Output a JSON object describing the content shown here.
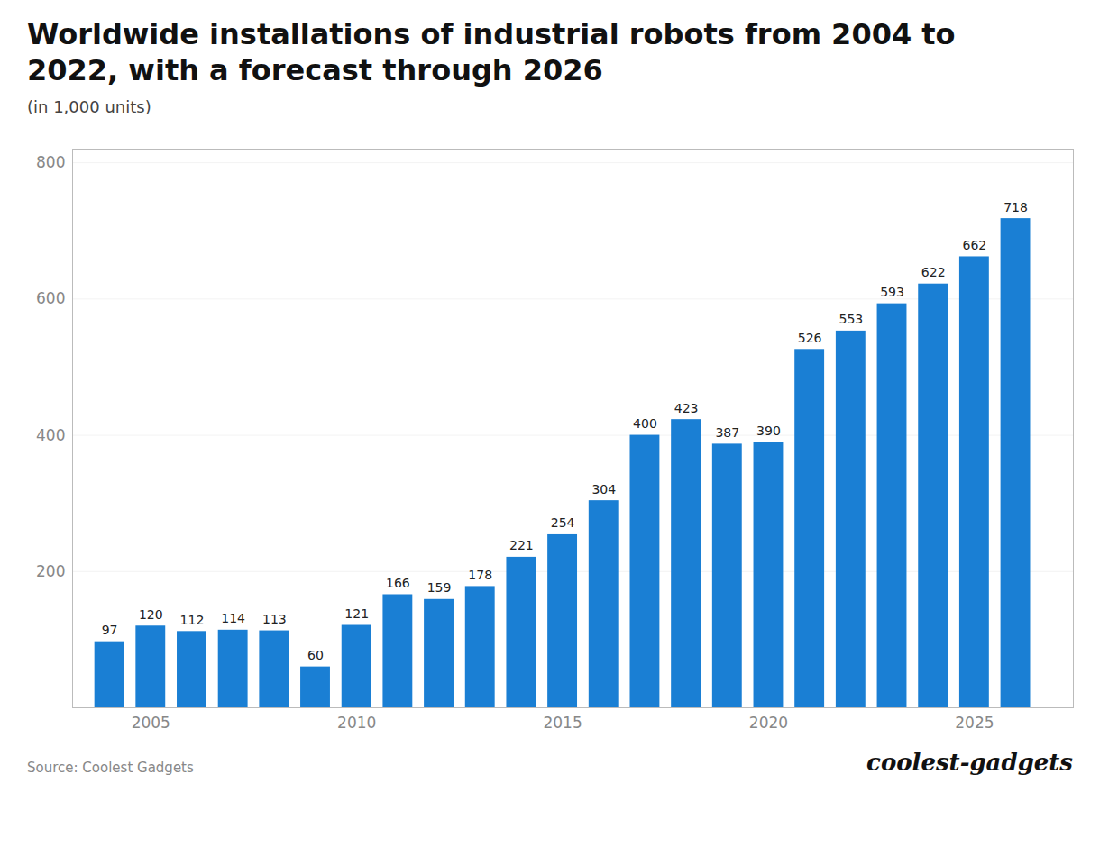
{
  "chart_data": {
    "type": "bar",
    "title": "Worldwide installations of industrial robots from 2004 to\n2022, with a forecast through 2026",
    "subtitle": "(in 1,000 units)",
    "source": "Source: Coolest Gadgets",
    "annotations": [
      "coolest-gadgets"
    ],
    "x": [
      2004,
      2005,
      2006,
      2007,
      2008,
      2009,
      2010,
      2011,
      2012,
      2013,
      2014,
      2015,
      2016,
      2017,
      2018,
      2019,
      2020,
      2021,
      2022,
      2023,
      2024,
      2025,
      2026
    ],
    "values": [
      97,
      120,
      112,
      114,
      113,
      60,
      121,
      166,
      159,
      178,
      221,
      254,
      304,
      400,
      423,
      387,
      390,
      526,
      553,
      593,
      622,
      662,
      718
    ],
    "color": "#1a7fd4",
    "xlim": [
      2003.1,
      2027.4
    ],
    "xticks": [
      2005,
      2010,
      2015,
      2020,
      2025
    ],
    "ylim": [
      0,
      820
    ],
    "yticks": [
      200,
      400,
      600,
      800
    ],
    "grid": true,
    "data_labels": true
  }
}
